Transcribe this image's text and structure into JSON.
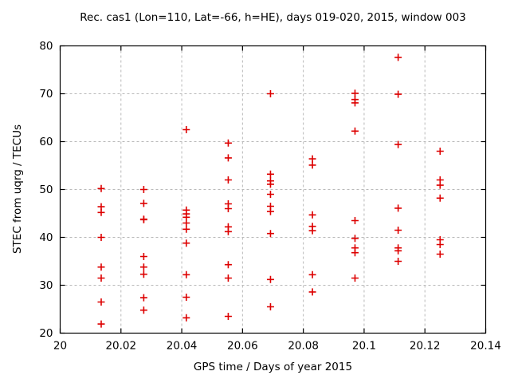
{
  "chart_data": {
    "type": "scatter",
    "title": "Rec. cas1 (Lon=110, Lat=-66, h=HE), days 019-020, 2015, window 003",
    "xlabel": "GPS time / Days of year 2015",
    "ylabel": "STEC from uqrg / TECUs",
    "xlim": [
      20.0,
      20.14
    ],
    "ylim": [
      20,
      80
    ],
    "xticks": {
      "values": [
        20.0,
        20.02,
        20.04,
        20.06,
        20.08,
        20.1,
        20.12,
        20.14
      ],
      "labels": [
        "20",
        "20.02",
        "20.04",
        "20.06",
        "20.08",
        "20.1",
        "20.12",
        "20.14"
      ]
    },
    "yticks": {
      "values": [
        20,
        30,
        40,
        50,
        60,
        70,
        80
      ],
      "labels": [
        "20",
        "30",
        "40",
        "50",
        "60",
        "70",
        "80"
      ]
    },
    "grid": true,
    "grid_style": "dashed",
    "grid_color": "#b9b9b9",
    "frame_color": "#000000",
    "legend": null,
    "marker": {
      "shape": "plus",
      "color": "#dd0000",
      "half_size": 4.5,
      "stroke_width": 1.6
    },
    "series": [
      {
        "name": "STEC",
        "color": "#dd0000",
        "groups": [
          {
            "x": 20.0135,
            "ys": [
              50.2,
              46.4,
              45.2,
              40.0,
              33.8,
              31.5,
              26.5,
              21.9
            ]
          },
          {
            "x": 20.0275,
            "ys": [
              50.0,
              47.1,
              43.8,
              43.7,
              36.0,
              33.8,
              32.3,
              27.4,
              24.8
            ]
          },
          {
            "x": 20.0415,
            "ys": [
              62.5,
              45.7,
              44.9,
              44.2,
              43.0,
              41.7,
              38.8,
              32.2,
              27.5,
              23.2
            ]
          },
          {
            "x": 20.0553,
            "ys": [
              59.7,
              56.6,
              52.0,
              47.0,
              46.0,
              42.2,
              41.2,
              34.3,
              31.5,
              23.5
            ]
          },
          {
            "x": 20.0692,
            "ys": [
              70.0,
              53.2,
              51.8,
              51.1,
              49.0,
              46.5,
              45.4,
              40.8,
              31.2,
              25.5
            ]
          },
          {
            "x": 20.083,
            "ys": [
              56.4,
              55.1,
              44.7,
              42.3,
              41.4,
              32.2,
              28.6
            ]
          },
          {
            "x": 20.097,
            "ys": [
              70.1,
              68.8,
              68.1,
              62.2,
              43.5,
              39.8,
              37.8,
              36.8,
              31.5
            ]
          },
          {
            "x": 20.1112,
            "ys": [
              77.6,
              69.9,
              59.4,
              46.1,
              41.5,
              37.8,
              37.2,
              35.0
            ]
          },
          {
            "x": 20.125,
            "ys": [
              58.0,
              52.0,
              50.9,
              48.2,
              39.5,
              38.5,
              36.5
            ]
          }
        ]
      }
    ]
  }
}
